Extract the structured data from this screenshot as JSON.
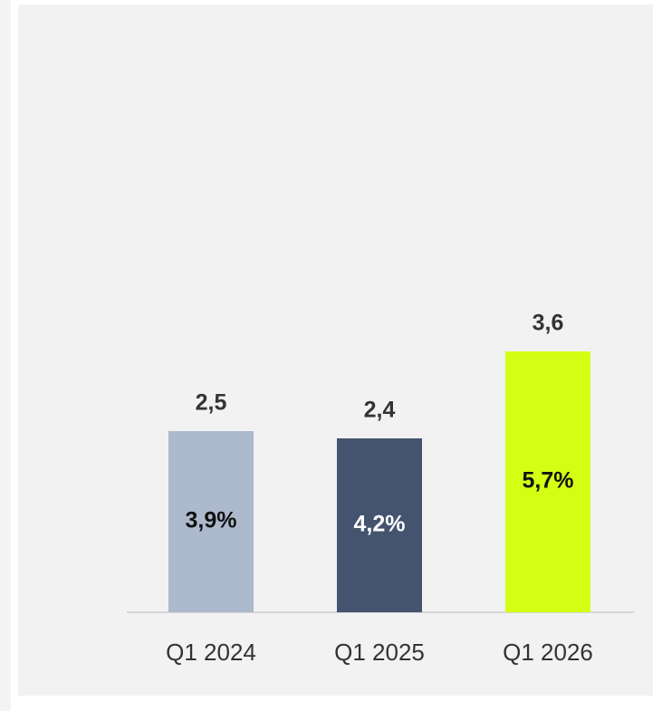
{
  "chart_data": {
    "type": "bar",
    "categories": [
      "Q1 2024",
      "Q1 2025",
      "Q1 2026"
    ],
    "values": [
      2.5,
      2.4,
      3.6
    ],
    "value_labels": [
      "2,5",
      "2,4",
      "3,6"
    ],
    "inner_values": [
      3.9,
      4.2,
      5.7
    ],
    "inner_labels": [
      "3,9%",
      "4,2%",
      "5,7%"
    ],
    "colors": [
      "#adb9cc",
      "#44546f",
      "#d4ff14"
    ],
    "inner_label_colors": [
      "#111111",
      "#ffffff",
      "#111111"
    ],
    "ylim": [
      0,
      8
    ]
  }
}
